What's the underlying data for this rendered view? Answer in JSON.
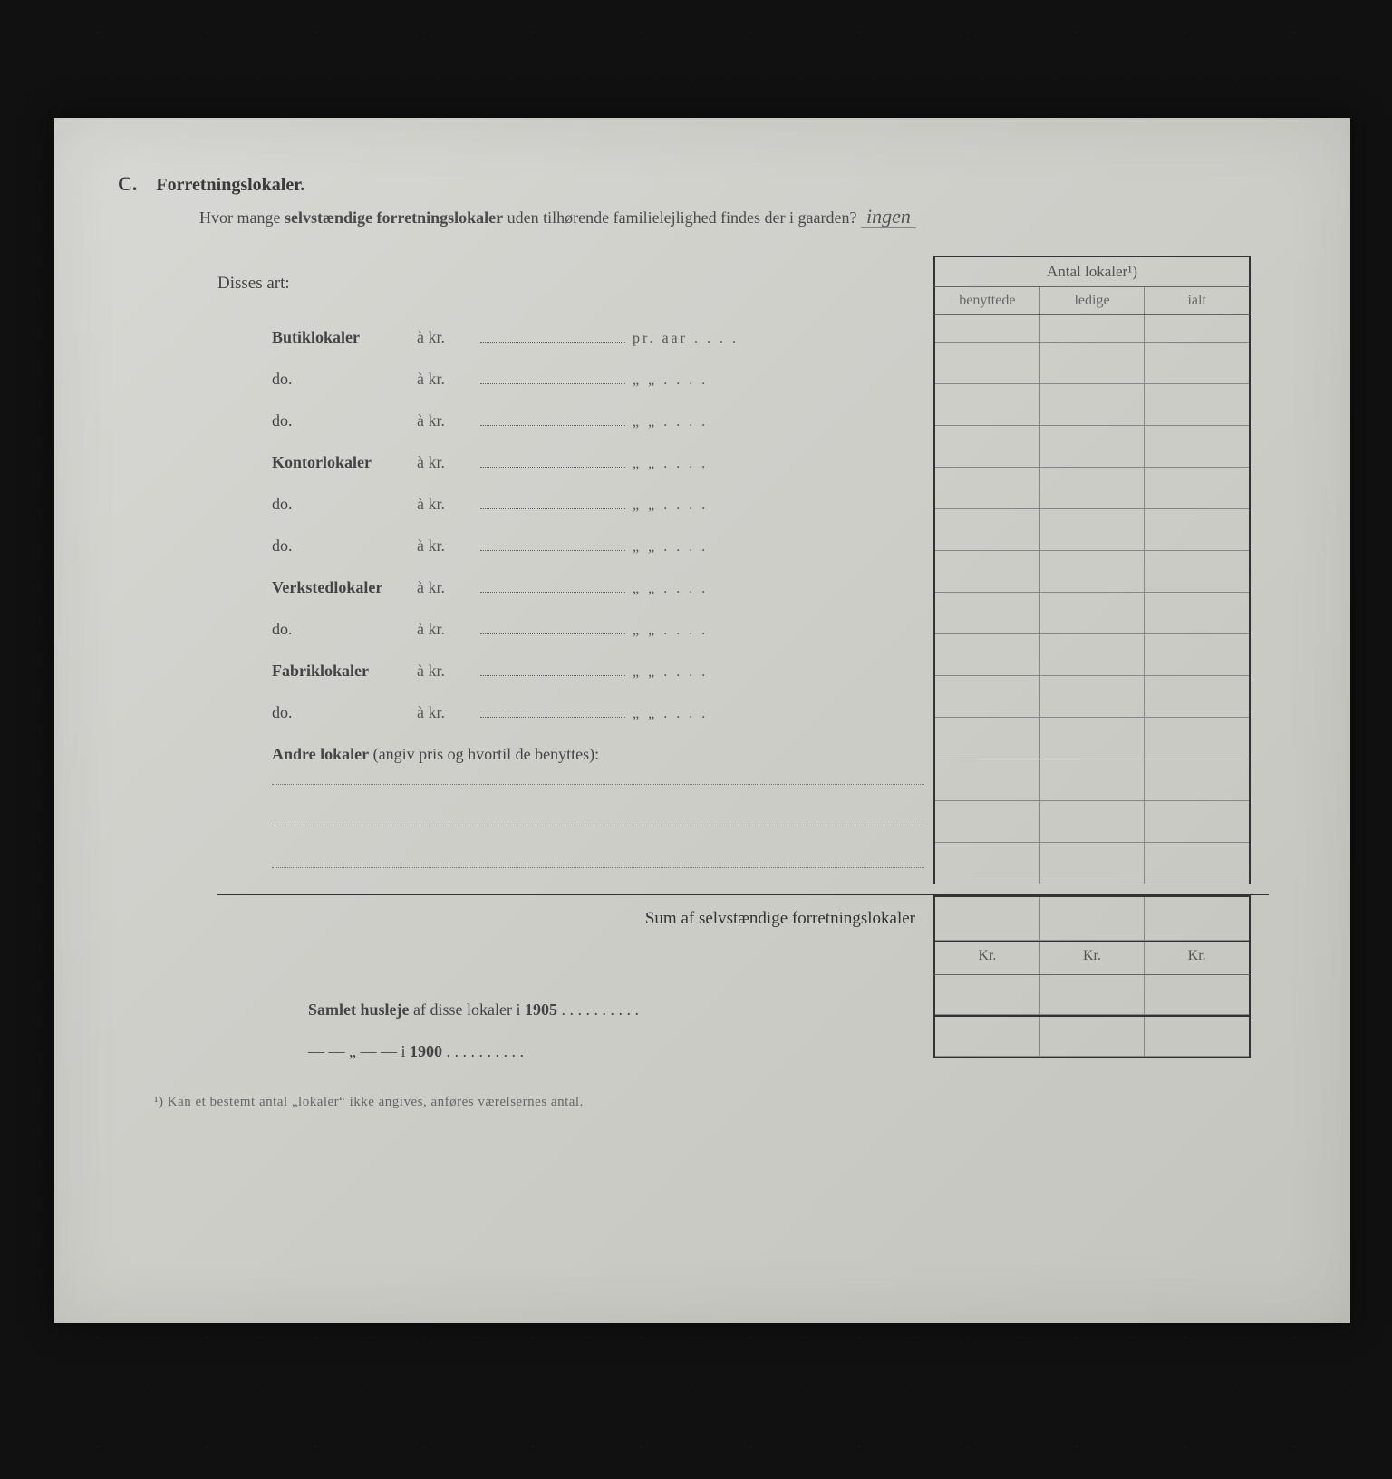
{
  "document": {
    "section_letter": "C.",
    "section_title": "Forretningslokaler.",
    "question_prefix": "Hvor mange ",
    "question_bold": "selvstændige forretningslokaler",
    "question_suffix": " uden tilhørende familielejlighed findes der i gaarden?",
    "handwritten_answer": "ingen",
    "background_color": "#d2d2cc",
    "text_color": "#3a3a3a"
  },
  "table": {
    "header_title": "Antal lokaler¹)",
    "columns": [
      "benyttede",
      "ledige",
      "ialt"
    ],
    "border_color": "#333333",
    "grid_color": "#888888"
  },
  "form": {
    "disses_label": "Disses art:",
    "a_kr": "à kr.",
    "pr_aar": "pr. aar . . . .",
    "ditto_marks": "„    „  . . . .",
    "rows": [
      {
        "label": "Butiklokaler",
        "bold": true,
        "suffix": "pr_aar"
      },
      {
        "label": "do.",
        "bold": false,
        "suffix": "ditto"
      },
      {
        "label": "do.",
        "bold": false,
        "suffix": "ditto"
      },
      {
        "label": "Kontorlokaler",
        "bold": true,
        "suffix": "ditto"
      },
      {
        "label": "do.",
        "bold": false,
        "suffix": "ditto"
      },
      {
        "label": "do.",
        "bold": false,
        "suffix": "ditto"
      },
      {
        "label": "Verkstedlokaler",
        "bold": true,
        "suffix": "ditto"
      },
      {
        "label": "do.",
        "bold": false,
        "suffix": "ditto"
      },
      {
        "label": "Fabriklokaler",
        "bold": true,
        "suffix": "ditto"
      },
      {
        "label": "do.",
        "bold": false,
        "suffix": "ditto"
      }
    ],
    "andre_bold": "Andre lokaler",
    "andre_rest": " (angiv pris og hvortil de benyttes):",
    "blank_line_count": 3,
    "sum_label": "Sum af selvstændige forretningslokaler",
    "kr_label": "Kr.",
    "husleje_prefix": "Samlet husleje",
    "husleje_rest": " af disse lokaler i ",
    "year_1905": "1905",
    "year_1900_line": "—      —    „    —      —   i ",
    "year_1900": "1900",
    "trailing_dots": " . . . . . . . . . ."
  },
  "footnote": "¹) Kan et bestemt antal „lokaler“ ikke angives, anføres værelsernes antal."
}
